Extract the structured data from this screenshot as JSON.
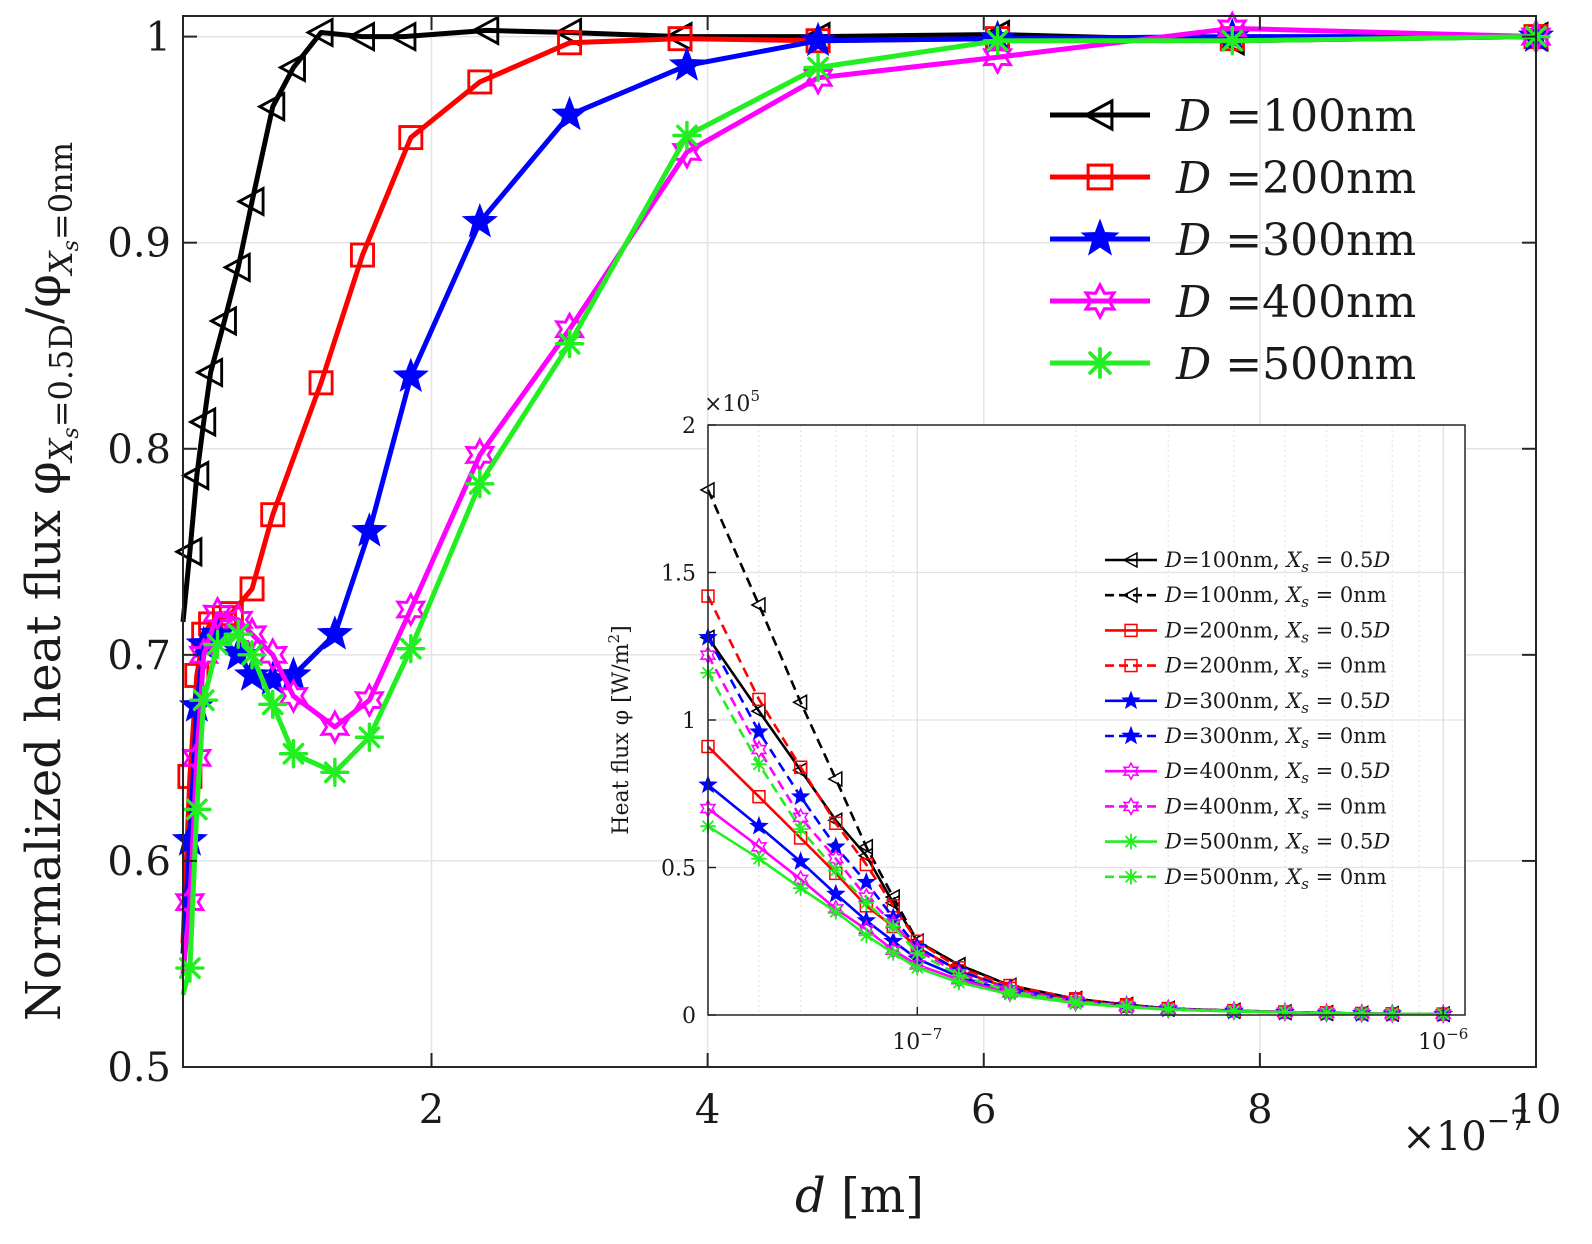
{
  "chart_data": [
    {
      "type": "line",
      "xlabel_symbol": "d",
      "xlabel_unit": "[m]",
      "ylabel": "Normalized heat flux φ",
      "ylabel_sub_num": "X",
      "ylabel_sub_num_sub": "s",
      "ylabel_sub_num_rest": "=0.5D",
      "ylabel_den": "φ",
      "ylabel_sub_den": "X",
      "ylabel_sub_den_sub": "s",
      "ylabel_sub_den_rest": "=0nm",
      "x_multiplier_base": "×10",
      "x_multiplier_exp": "−7",
      "xlim": [
        0.2,
        10
      ],
      "ylim": [
        0.5,
        1.01
      ],
      "xticks": [
        2,
        4,
        6,
        8,
        10
      ],
      "xtick_labels": [
        "2",
        "4",
        "6",
        "8",
        "10"
      ],
      "yticks": [
        0.5,
        0.6,
        0.7,
        0.8,
        0.9,
        1.0
      ],
      "ytick_labels": [
        "0.5",
        "0.6",
        "0.7",
        "0.8",
        "0.9",
        "1"
      ],
      "grid": true,
      "legend_position": "top-right",
      "series": [
        {
          "name": "D =100nm",
          "legend_var": "D",
          "legend_rest": " =100nm",
          "color": "#000000",
          "marker": "triangle-left",
          "x": [
            0.2,
            0.25,
            0.3,
            0.35,
            0.4,
            0.5,
            0.6,
            0.7,
            0.85,
            1.0,
            1.2,
            1.5,
            1.8,
            2.4,
            3.0,
            3.8,
            4.8,
            6.1,
            7.8,
            10.0
          ],
          "y": [
            0.716,
            0.75,
            0.787,
            0.813,
            0.837,
            0.862,
            0.888,
            0.92,
            0.966,
            0.985,
            1.002,
            1.0,
            1.0,
            1.003,
            1.002,
            1.0,
            1.0,
            1.001,
            0.998,
            1.0
          ]
        },
        {
          "name": "D =200nm",
          "legend_var": "D",
          "legend_rest": " =200nm",
          "color": "#ff0000",
          "marker": "square",
          "x": [
            0.2,
            0.25,
            0.3,
            0.35,
            0.4,
            0.5,
            0.55,
            0.7,
            0.85,
            1.2,
            1.5,
            1.85,
            2.35,
            3.0,
            3.8,
            4.8,
            6.1,
            7.8,
            10.0
          ],
          "y": [
            0.56,
            0.641,
            0.69,
            0.71,
            0.715,
            0.718,
            0.72,
            0.732,
            0.768,
            0.832,
            0.894,
            0.951,
            0.978,
            0.997,
            0.999,
            0.998,
            0.999,
            0.999,
            1.0
          ]
        },
        {
          "name": "D =300nm",
          "legend_var": "D",
          "legend_rest": " =300nm",
          "color": "#0000ff",
          "marker": "star5",
          "x": [
            0.2,
            0.25,
            0.3,
            0.35,
            0.45,
            0.6,
            0.7,
            0.85,
            1.0,
            1.3,
            1.55,
            1.85,
            2.35,
            3.0,
            3.85,
            4.8,
            6.1,
            7.8,
            10.0
          ],
          "y": [
            0.555,
            0.61,
            0.675,
            0.705,
            0.71,
            0.7,
            0.69,
            0.688,
            0.69,
            0.71,
            0.76,
            0.835,
            0.91,
            0.962,
            0.986,
            0.998,
            0.999,
            1.0,
            1.0
          ]
        },
        {
          "name": "D =400nm",
          "legend_var": "D",
          "legend_rest": " =400nm",
          "color": "#ff00ff",
          "marker": "star6",
          "x": [
            0.2,
            0.25,
            0.3,
            0.35,
            0.45,
            0.6,
            0.7,
            0.85,
            1.0,
            1.3,
            1.55,
            1.85,
            2.35,
            3.0,
            3.85,
            4.8,
            6.1,
            7.8,
            10.0
          ],
          "y": [
            0.545,
            0.58,
            0.65,
            0.7,
            0.72,
            0.717,
            0.71,
            0.7,
            0.68,
            0.665,
            0.678,
            0.722,
            0.797,
            0.858,
            0.944,
            0.98,
            0.99,
            1.004,
            1.0
          ]
        },
        {
          "name": "D =500nm",
          "legend_var": "D",
          "legend_rest": " =500nm",
          "color": "#22ee22",
          "marker": "asterisk",
          "x": [
            0.2,
            0.25,
            0.3,
            0.35,
            0.45,
            0.6,
            0.7,
            0.85,
            1.0,
            1.3,
            1.55,
            1.85,
            2.35,
            3.0,
            3.85,
            4.8,
            6.1,
            7.8,
            10.0
          ],
          "y": [
            0.535,
            0.548,
            0.625,
            0.678,
            0.705,
            0.71,
            0.7,
            0.676,
            0.652,
            0.643,
            0.66,
            0.703,
            0.783,
            0.851,
            0.952,
            0.985,
            0.998,
            0.998,
            1.0
          ]
        }
      ]
    },
    {
      "type": "line",
      "ylabel": "Heat flux φ [W/m",
      "ylabel_sup": "2",
      "ylabel_end": "]",
      "y_multiplier_base": "×10",
      "y_multiplier_exp": "5",
      "x_scale": "log",
      "xlim": [
        4e-08,
        1.1e-06
      ],
      "ylim": [
        0,
        2
      ],
      "yticks": [
        0,
        0.5,
        1,
        1.5,
        2
      ],
      "ytick_labels": [
        "0",
        "0.5",
        "1",
        "1.5",
        "2"
      ],
      "xticks": [
        1e-07,
        1e-06
      ],
      "xtick_base": "10",
      "xtick_exps": [
        "−7",
        "−6"
      ],
      "grid": true,
      "legend_position": "right",
      "series": [
        {
          "name": "D=100nm, Xs = 0.5D",
          "color": "#000000",
          "dash": false,
          "marker": "triangle-left",
          "x": [
            4e-08,
            5e-08,
            6e-08,
            7e-08,
            8e-08,
            9e-08,
            1e-07,
            1.2e-07,
            1.5e-07,
            2e-07,
            2.5e-07,
            3e-07,
            4e-07,
            5e-07,
            6e-07,
            7e-07,
            8e-07,
            1e-06
          ],
          "y": [
            1.28,
            1.03,
            0.83,
            0.66,
            0.54,
            0.38,
            0.25,
            0.17,
            0.1,
            0.055,
            0.035,
            0.022,
            0.015,
            0.01,
            0.007,
            0.005,
            0.004,
            0.003
          ]
        },
        {
          "name": "D=100nm, Xs = 0nm",
          "color": "#000000",
          "dash": true,
          "marker": "triangle-left",
          "x": [
            4e-08,
            5e-08,
            6e-08,
            7e-08,
            8e-08,
            9e-08,
            1e-07,
            1.2e-07,
            1.5e-07,
            2e-07,
            2.5e-07,
            3e-07,
            4e-07,
            5e-07,
            6e-07,
            7e-07,
            8e-07,
            1e-06
          ],
          "y": [
            1.78,
            1.39,
            1.06,
            0.8,
            0.57,
            0.4,
            0.25,
            0.17,
            0.1,
            0.055,
            0.035,
            0.022,
            0.015,
            0.01,
            0.007,
            0.005,
            0.004,
            0.003
          ]
        },
        {
          "name": "D=200nm, Xs = 0.5D",
          "color": "#ff0000",
          "dash": false,
          "marker": "square",
          "x": [
            4e-08,
            5e-08,
            6e-08,
            7e-08,
            8e-08,
            9e-08,
            1e-07,
            1.2e-07,
            1.5e-07,
            2e-07,
            2.5e-07,
            3e-07,
            4e-07,
            5e-07,
            6e-07,
            7e-07,
            8e-07,
            1e-06
          ],
          "y": [
            0.91,
            0.74,
            0.6,
            0.48,
            0.37,
            0.3,
            0.23,
            0.15,
            0.09,
            0.05,
            0.03,
            0.02,
            0.014,
            0.01,
            0.007,
            0.005,
            0.004,
            0.003
          ]
        },
        {
          "name": "D=200nm, Xs = 0nm",
          "color": "#ff0000",
          "dash": true,
          "marker": "square",
          "x": [
            4e-08,
            5e-08,
            6e-08,
            7e-08,
            8e-08,
            9e-08,
            1e-07,
            1.2e-07,
            1.5e-07,
            2e-07,
            2.5e-07,
            3e-07,
            4e-07,
            5e-07,
            6e-07,
            7e-07,
            8e-07,
            1e-06
          ],
          "y": [
            1.42,
            1.07,
            0.84,
            0.65,
            0.51,
            0.37,
            0.25,
            0.16,
            0.1,
            0.055,
            0.035,
            0.022,
            0.015,
            0.01,
            0.007,
            0.005,
            0.004,
            0.003
          ]
        },
        {
          "name": "D=300nm, Xs = 0.5D",
          "color": "#0000ff",
          "dash": false,
          "marker": "star5",
          "x": [
            4e-08,
            5e-08,
            6e-08,
            7e-08,
            8e-08,
            9e-08,
            1e-07,
            1.2e-07,
            1.5e-07,
            2e-07,
            2.5e-07,
            3e-07,
            4e-07,
            5e-07,
            6e-07,
            7e-07,
            8e-07,
            1e-06
          ],
          "y": [
            0.78,
            0.64,
            0.52,
            0.41,
            0.32,
            0.25,
            0.19,
            0.13,
            0.08,
            0.045,
            0.03,
            0.02,
            0.013,
            0.009,
            0.006,
            0.005,
            0.004,
            0.003
          ]
        },
        {
          "name": "D=300nm, Xs = 0nm",
          "color": "#0000ff",
          "dash": true,
          "marker": "star5",
          "x": [
            4e-08,
            5e-08,
            6e-08,
            7e-08,
            8e-08,
            9e-08,
            1e-07,
            1.2e-07,
            1.5e-07,
            2e-07,
            2.5e-07,
            3e-07,
            4e-07,
            5e-07,
            6e-07,
            7e-07,
            8e-07,
            1e-06
          ],
          "y": [
            1.28,
            0.96,
            0.74,
            0.57,
            0.45,
            0.33,
            0.23,
            0.15,
            0.09,
            0.05,
            0.033,
            0.021,
            0.014,
            0.01,
            0.007,
            0.005,
            0.004,
            0.003
          ]
        },
        {
          "name": "D=400nm, Xs = 0.5D",
          "color": "#ff00ff",
          "dash": false,
          "marker": "star6",
          "x": [
            4e-08,
            5e-08,
            6e-08,
            7e-08,
            8e-08,
            9e-08,
            1e-07,
            1.2e-07,
            1.5e-07,
            2e-07,
            2.5e-07,
            3e-07,
            4e-07,
            5e-07,
            6e-07,
            7e-07,
            8e-07,
            1e-06
          ],
          "y": [
            0.7,
            0.57,
            0.46,
            0.36,
            0.29,
            0.22,
            0.17,
            0.12,
            0.075,
            0.042,
            0.028,
            0.019,
            0.013,
            0.009,
            0.006,
            0.005,
            0.004,
            0.003
          ]
        },
        {
          "name": "D=400nm, Xs = 0nm",
          "color": "#ff00ff",
          "dash": true,
          "marker": "star6",
          "x": [
            4e-08,
            5e-08,
            6e-08,
            7e-08,
            8e-08,
            9e-08,
            1e-07,
            1.2e-07,
            1.5e-07,
            2e-07,
            2.5e-07,
            3e-07,
            4e-07,
            5e-07,
            6e-07,
            7e-07,
            8e-07,
            1e-06
          ],
          "y": [
            1.22,
            0.9,
            0.67,
            0.53,
            0.4,
            0.31,
            0.22,
            0.14,
            0.085,
            0.048,
            0.031,
            0.02,
            0.014,
            0.01,
            0.007,
            0.005,
            0.004,
            0.003
          ]
        },
        {
          "name": "D=500nm, Xs = 0.5D",
          "color": "#22ee22",
          "dash": false,
          "marker": "asterisk",
          "x": [
            4e-08,
            5e-08,
            6e-08,
            7e-08,
            8e-08,
            9e-08,
            1e-07,
            1.2e-07,
            1.5e-07,
            2e-07,
            2.5e-07,
            3e-07,
            4e-07,
            5e-07,
            6e-07,
            7e-07,
            8e-07,
            1e-06
          ],
          "y": [
            0.64,
            0.53,
            0.43,
            0.35,
            0.27,
            0.21,
            0.16,
            0.11,
            0.07,
            0.04,
            0.027,
            0.018,
            0.012,
            0.009,
            0.006,
            0.005,
            0.004,
            0.003
          ]
        },
        {
          "name": "D=500nm, Xs = 0nm",
          "color": "#22ee22",
          "dash": true,
          "marker": "asterisk",
          "x": [
            4e-08,
            5e-08,
            6e-08,
            7e-08,
            8e-08,
            9e-08,
            1e-07,
            1.2e-07,
            1.5e-07,
            2e-07,
            2.5e-07,
            3e-07,
            4e-07,
            5e-07,
            6e-07,
            7e-07,
            8e-07,
            1e-06
          ],
          "y": [
            1.16,
            0.85,
            0.63,
            0.49,
            0.38,
            0.3,
            0.21,
            0.135,
            0.08,
            0.045,
            0.03,
            0.02,
            0.014,
            0.01,
            0.007,
            0.005,
            0.004,
            0.003
          ]
        }
      ]
    }
  ]
}
